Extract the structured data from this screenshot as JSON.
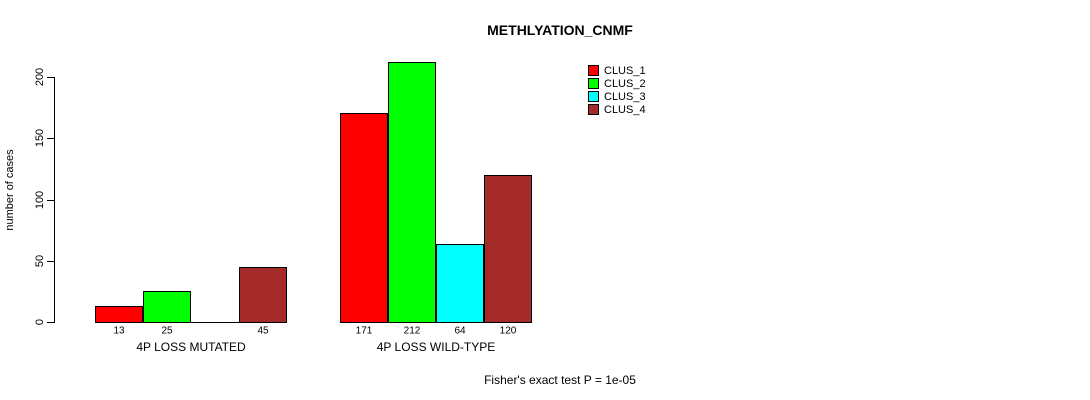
{
  "title": "METHLYATION_CNMF",
  "footnote": "Fisher's exact test P = 1e-05",
  "chart_data": {
    "type": "bar",
    "title": "METHLYATION_CNMF",
    "xlabel": "",
    "ylabel": "number of cases",
    "ylim": [
      0,
      200
    ],
    "yticks": [
      0,
      50,
      100,
      150,
      200
    ],
    "grid": false,
    "legend_position": "top-right",
    "categories": [
      "4P LOSS MUTATED",
      "4P LOSS WILD-TYPE"
    ],
    "series": [
      {
        "name": "CLUS_1",
        "color": "#FF0000",
        "values": [
          13,
          171
        ]
      },
      {
        "name": "CLUS_2",
        "color": "#00FF00",
        "values": [
          25,
          212
        ]
      },
      {
        "name": "CLUS_3",
        "color": "#00FFFF",
        "values": [
          0,
          64
        ]
      },
      {
        "name": "CLUS_4",
        "color": "#A52A2A",
        "values": [
          45,
          120
        ]
      }
    ],
    "bar_labels": [
      [
        "13",
        "25",
        "",
        "45"
      ],
      [
        "171",
        "212",
        "64",
        "120"
      ]
    ],
    "annotation": "Fisher's exact test P = 1e-05"
  }
}
